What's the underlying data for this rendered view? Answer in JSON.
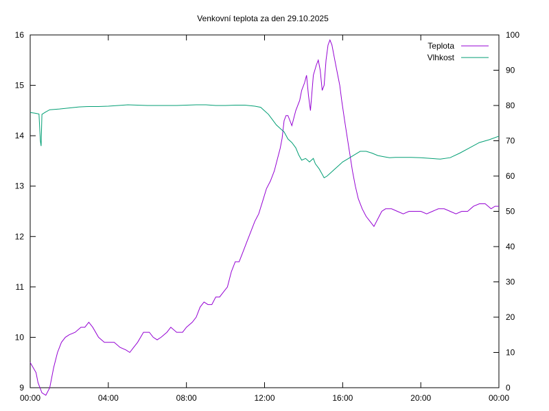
{
  "chart_data": {
    "type": "line",
    "title": "Venkovní teplota za den 29.10.2025",
    "xlabel": "",
    "ylabel": "",
    "y2label": "",
    "x_unit": "hours",
    "xlim": [
      0,
      24
    ],
    "ylim": [
      9,
      16
    ],
    "y2lim": [
      0,
      100
    ],
    "grid": false,
    "legend": "top-right",
    "x_ticks": [
      {
        "value": 0,
        "label": "00:00"
      },
      {
        "value": 4,
        "label": "04:00"
      },
      {
        "value": 8,
        "label": "08:00"
      },
      {
        "value": 12,
        "label": "12:00"
      },
      {
        "value": 16,
        "label": "16:00"
      },
      {
        "value": 20,
        "label": "20:00"
      },
      {
        "value": 24,
        "label": "00:00"
      }
    ],
    "y_ticks": [
      9,
      10,
      11,
      12,
      13,
      14,
      15,
      16
    ],
    "y2_ticks": [
      0,
      10,
      20,
      30,
      40,
      50,
      60,
      70,
      80,
      90,
      100
    ],
    "series": [
      {
        "name": "Teplota",
        "axis": "y",
        "color": "#9400d3",
        "points": [
          [
            0.0,
            9.5
          ],
          [
            0.15,
            9.4
          ],
          [
            0.3,
            9.3
          ],
          [
            0.4,
            9.1
          ],
          [
            0.5,
            9.0
          ],
          [
            0.6,
            8.9
          ],
          [
            0.8,
            8.85
          ],
          [
            1.0,
            9.0
          ],
          [
            1.2,
            9.4
          ],
          [
            1.4,
            9.7
          ],
          [
            1.6,
            9.9
          ],
          [
            1.8,
            10.0
          ],
          [
            2.0,
            10.05
          ],
          [
            2.3,
            10.1
          ],
          [
            2.6,
            10.2
          ],
          [
            2.8,
            10.2
          ],
          [
            3.0,
            10.3
          ],
          [
            3.2,
            10.2
          ],
          [
            3.5,
            10.0
          ],
          [
            3.8,
            9.9
          ],
          [
            4.0,
            9.9
          ],
          [
            4.3,
            9.9
          ],
          [
            4.6,
            9.8
          ],
          [
            4.9,
            9.75
          ],
          [
            5.1,
            9.7
          ],
          [
            5.3,
            9.8
          ],
          [
            5.5,
            9.9
          ],
          [
            5.8,
            10.1
          ],
          [
            6.1,
            10.1
          ],
          [
            6.3,
            10.0
          ],
          [
            6.5,
            9.95
          ],
          [
            6.7,
            10.0
          ],
          [
            7.0,
            10.1
          ],
          [
            7.2,
            10.2
          ],
          [
            7.5,
            10.1
          ],
          [
            7.8,
            10.1
          ],
          [
            8.0,
            10.2
          ],
          [
            8.3,
            10.3
          ],
          [
            8.5,
            10.4
          ],
          [
            8.7,
            10.6
          ],
          [
            8.9,
            10.7
          ],
          [
            9.1,
            10.65
          ],
          [
            9.3,
            10.65
          ],
          [
            9.5,
            10.8
          ],
          [
            9.7,
            10.8
          ],
          [
            9.9,
            10.9
          ],
          [
            10.1,
            11.0
          ],
          [
            10.3,
            11.3
          ],
          [
            10.5,
            11.5
          ],
          [
            10.7,
            11.5
          ],
          [
            10.9,
            11.7
          ],
          [
            11.1,
            11.9
          ],
          [
            11.3,
            12.1
          ],
          [
            11.5,
            12.3
          ],
          [
            11.7,
            12.45
          ],
          [
            11.9,
            12.7
          ],
          [
            12.1,
            12.95
          ],
          [
            12.3,
            13.1
          ],
          [
            12.5,
            13.3
          ],
          [
            12.7,
            13.6
          ],
          [
            12.8,
            13.75
          ],
          [
            12.9,
            13.95
          ],
          [
            13.0,
            14.3
          ],
          [
            13.1,
            14.4
          ],
          [
            13.2,
            14.4
          ],
          [
            13.4,
            14.2
          ],
          [
            13.6,
            14.5
          ],
          [
            13.8,
            14.7
          ],
          [
            13.9,
            14.9
          ],
          [
            14.05,
            15.05
          ],
          [
            14.15,
            15.2
          ],
          [
            14.25,
            14.8
          ],
          [
            14.35,
            14.5
          ],
          [
            14.5,
            15.2
          ],
          [
            14.65,
            15.4
          ],
          [
            14.75,
            15.5
          ],
          [
            14.85,
            15.3
          ],
          [
            14.95,
            14.9
          ],
          [
            15.05,
            15.0
          ],
          [
            15.15,
            15.5
          ],
          [
            15.25,
            15.8
          ],
          [
            15.35,
            15.9
          ],
          [
            15.45,
            15.8
          ],
          [
            15.6,
            15.5
          ],
          [
            15.75,
            15.2
          ],
          [
            15.85,
            15.0
          ],
          [
            15.95,
            14.7
          ],
          [
            16.1,
            14.3
          ],
          [
            16.3,
            13.8
          ],
          [
            16.5,
            13.3
          ],
          [
            16.65,
            13.0
          ],
          [
            16.8,
            12.75
          ],
          [
            17.0,
            12.55
          ],
          [
            17.2,
            12.4
          ],
          [
            17.4,
            12.3
          ],
          [
            17.6,
            12.2
          ],
          [
            17.8,
            12.35
          ],
          [
            18.0,
            12.5
          ],
          [
            18.2,
            12.55
          ],
          [
            18.5,
            12.55
          ],
          [
            18.8,
            12.5
          ],
          [
            19.1,
            12.45
          ],
          [
            19.4,
            12.5
          ],
          [
            19.7,
            12.5
          ],
          [
            20.0,
            12.5
          ],
          [
            20.3,
            12.45
          ],
          [
            20.6,
            12.5
          ],
          [
            20.9,
            12.55
          ],
          [
            21.2,
            12.55
          ],
          [
            21.5,
            12.5
          ],
          [
            21.8,
            12.45
          ],
          [
            22.1,
            12.5
          ],
          [
            22.4,
            12.5
          ],
          [
            22.7,
            12.6
          ],
          [
            23.0,
            12.65
          ],
          [
            23.3,
            12.65
          ],
          [
            23.6,
            12.55
          ],
          [
            23.8,
            12.6
          ],
          [
            24.0,
            12.6
          ]
        ]
      },
      {
        "name": "Vlhkost",
        "axis": "y2",
        "color": "#009e73",
        "points": [
          [
            0.0,
            78.0
          ],
          [
            0.25,
            77.8
          ],
          [
            0.45,
            77.6
          ],
          [
            0.52,
            70.0
          ],
          [
            0.56,
            68.5
          ],
          [
            0.6,
            77.5
          ],
          [
            0.8,
            78.2
          ],
          [
            1.0,
            78.8
          ],
          [
            1.5,
            79.0
          ],
          [
            2.0,
            79.3
          ],
          [
            2.5,
            79.6
          ],
          [
            3.0,
            79.7
          ],
          [
            3.5,
            79.7
          ],
          [
            4.0,
            79.8
          ],
          [
            4.5,
            80.0
          ],
          [
            5.0,
            80.2
          ],
          [
            5.5,
            80.1
          ],
          [
            6.0,
            80.0
          ],
          [
            6.5,
            80.0
          ],
          [
            7.0,
            80.0
          ],
          [
            7.5,
            80.0
          ],
          [
            8.0,
            80.1
          ],
          [
            8.5,
            80.2
          ],
          [
            9.0,
            80.2
          ],
          [
            9.5,
            80.0
          ],
          [
            10.0,
            80.0
          ],
          [
            10.5,
            80.1
          ],
          [
            11.0,
            80.1
          ],
          [
            11.5,
            79.8
          ],
          [
            11.8,
            79.5
          ],
          [
            12.0,
            78.5
          ],
          [
            12.2,
            77.5
          ],
          [
            12.4,
            76.0
          ],
          [
            12.6,
            74.5
          ],
          [
            12.8,
            73.5
          ],
          [
            13.0,
            72.5
          ],
          [
            13.2,
            70.5
          ],
          [
            13.4,
            69.5
          ],
          [
            13.6,
            68.0
          ],
          [
            13.75,
            66.0
          ],
          [
            13.9,
            64.5
          ],
          [
            14.1,
            65.0
          ],
          [
            14.3,
            64.0
          ],
          [
            14.5,
            65.0
          ],
          [
            14.6,
            63.5
          ],
          [
            14.8,
            62.0
          ],
          [
            14.95,
            60.5
          ],
          [
            15.05,
            59.5
          ],
          [
            15.2,
            60.0
          ],
          [
            15.4,
            61.0
          ],
          [
            15.6,
            62.0
          ],
          [
            15.8,
            63.0
          ],
          [
            16.0,
            64.0
          ],
          [
            16.3,
            65.0
          ],
          [
            16.6,
            66.0
          ],
          [
            16.9,
            67.0
          ],
          [
            17.2,
            67.0
          ],
          [
            17.5,
            66.5
          ],
          [
            17.8,
            65.8
          ],
          [
            18.1,
            65.5
          ],
          [
            18.4,
            65.2
          ],
          [
            18.7,
            65.3
          ],
          [
            19.0,
            65.3
          ],
          [
            19.5,
            65.3
          ],
          [
            20.0,
            65.2
          ],
          [
            20.5,
            65.0
          ],
          [
            21.0,
            64.8
          ],
          [
            21.5,
            65.2
          ],
          [
            22.0,
            66.5
          ],
          [
            22.5,
            68.0
          ],
          [
            23.0,
            69.5
          ],
          [
            23.5,
            70.3
          ],
          [
            24.0,
            71.3
          ]
        ]
      }
    ]
  }
}
